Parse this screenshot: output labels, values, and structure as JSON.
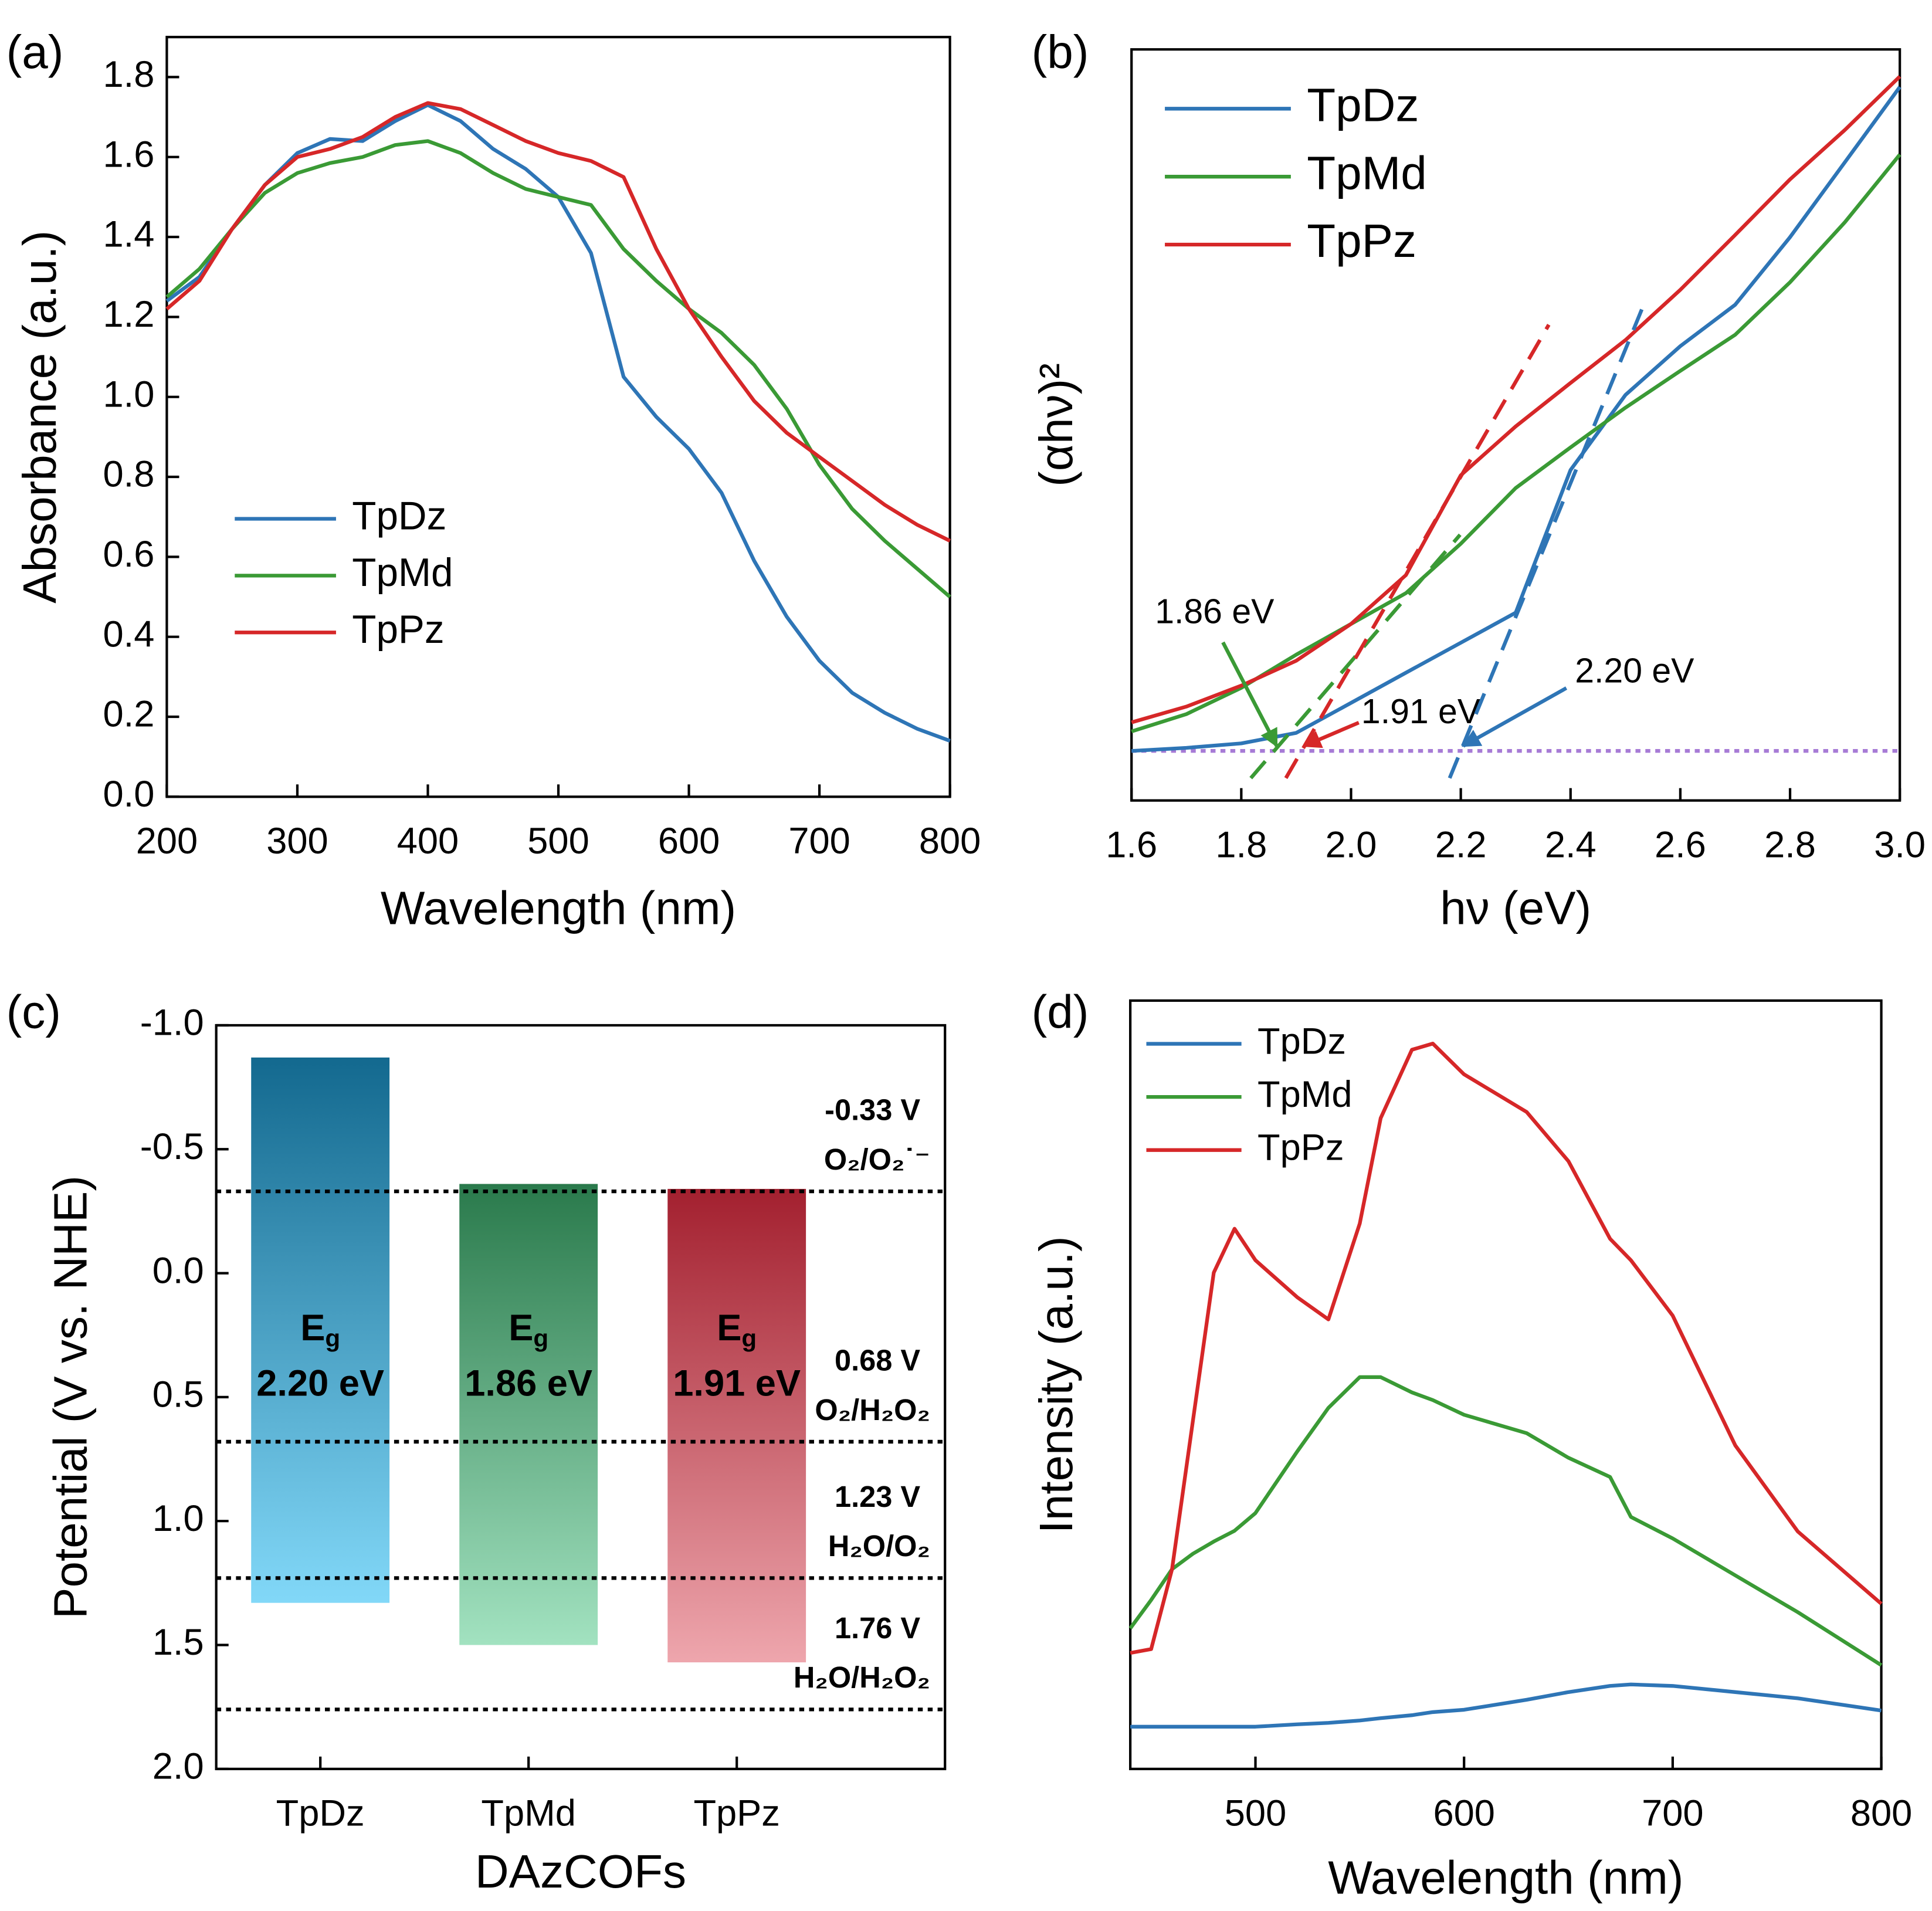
{
  "chart_data": [
    {
      "type": "line",
      "title": "(a)",
      "xlabel": "Wavelength (nm)",
      "ylabel": "Absorbance (a.u.)",
      "x": [
        200,
        225,
        250,
        275,
        300,
        325,
        350,
        375,
        400,
        425,
        450,
        475,
        500,
        525,
        550,
        575,
        600,
        625,
        650,
        675,
        700,
        725,
        750,
        775,
        800
      ],
      "series": [
        {
          "name": "TpDz",
          "color": "#2e75b6",
          "values": [
            1.24,
            1.3,
            1.42,
            1.53,
            1.61,
            1.645,
            1.64,
            1.69,
            1.73,
            1.69,
            1.62,
            1.57,
            1.5,
            1.36,
            1.05,
            0.95,
            0.87,
            0.76,
            0.59,
            0.45,
            0.34,
            0.26,
            0.21,
            0.17,
            0.14
          ]
        },
        {
          "name": "TpMd",
          "color": "#3a9a35",
          "values": [
            1.25,
            1.32,
            1.42,
            1.51,
            1.56,
            1.585,
            1.6,
            1.63,
            1.64,
            1.61,
            1.56,
            1.52,
            1.5,
            1.48,
            1.37,
            1.29,
            1.22,
            1.16,
            1.08,
            0.97,
            0.83,
            0.72,
            0.64,
            0.57,
            0.5
          ]
        },
        {
          "name": "TpPz",
          "color": "#d62728",
          "values": [
            1.22,
            1.29,
            1.42,
            1.53,
            1.6,
            1.62,
            1.65,
            1.7,
            1.735,
            1.72,
            1.68,
            1.64,
            1.61,
            1.59,
            1.55,
            1.37,
            1.22,
            1.1,
            0.99,
            0.91,
            0.85,
            0.79,
            0.73,
            0.68,
            0.64
          ]
        }
      ],
      "xlim": [
        200,
        800
      ],
      "xticks": [
        200,
        300,
        400,
        500,
        600,
        700,
        800
      ],
      "ylim": [
        0,
        1.9
      ],
      "yticks": [
        {
          "value": 0,
          "label": "0.0"
        },
        0.2,
        0.4,
        0.6,
        0.8,
        {
          "value": 1,
          "label": "1.0"
        },
        1.2,
        1.4,
        1.6,
        1.8
      ]
    },
    {
      "type": "line",
      "title": "(b)",
      "xlabel": "hν (eV)",
      "ylabel": "(αhν)²",
      "x": [
        1.6,
        1.7,
        1.8,
        1.9,
        2.0,
        2.1,
        2.2,
        2.3,
        2.4,
        2.5,
        2.6,
        2.7,
        2.8,
        2.9,
        3.0
      ],
      "series": [
        {
          "name": "TpDz",
          "color": "#2e75b6",
          "values": [
            0.066,
            0.07,
            0.076,
            0.09,
            0.13,
            0.17,
            0.21,
            0.25,
            0.44,
            0.54,
            0.605,
            0.66,
            0.75,
            0.85,
            0.95
          ]
        },
        {
          "name": "TpMd",
          "color": "#3a9a35",
          "values": [
            0.092,
            0.115,
            0.15,
            0.194,
            0.235,
            0.276,
            0.342,
            0.416,
            0.47,
            0.523,
            0.572,
            0.62,
            0.69,
            0.77,
            0.86
          ]
        },
        {
          "name": "TpPz",
          "color": "#d62728",
          "values": [
            0.104,
            0.125,
            0.153,
            0.186,
            0.235,
            0.3,
            0.433,
            0.498,
            0.556,
            0.613,
            0.68,
            0.753,
            0.827,
            0.893,
            0.964
          ]
        }
      ],
      "baseline": 0.066,
      "baseline_color": "#a77bd6",
      "annotations": [
        {
          "text": "1.86 eV",
          "value": 1.86,
          "color": "#3a9a35"
        },
        {
          "text": "1.91 eV",
          "value": 1.91,
          "color": "#d62728"
        },
        {
          "text": "2.20 eV",
          "value": 2.2,
          "color": "#2e75b6"
        }
      ],
      "xlim": [
        1.6,
        3.0
      ],
      "xticks": [
        1.6,
        1.8,
        {
          "value": 2,
          "label": "2.0"
        },
        2.2,
        2.4,
        2.6,
        2.8,
        {
          "value": 3,
          "label": "3.0"
        }
      ],
      "ylim": [
        0,
        1
      ]
    },
    {
      "type": "floating_bar",
      "title": "(c)",
      "xlabel": "DAzCOFs",
      "ylabel": "Potential (V vs. NHE)",
      "categories": [
        "TpDz",
        "TpMd",
        "TpPz"
      ],
      "cb": [
        -0.87,
        -0.36,
        -0.34
      ],
      "gaps": [
        2.2,
        1.86,
        1.91
      ],
      "gap_labels": [
        "2.20 eV",
        "1.86 eV",
        "1.91 eV"
      ],
      "gap_symbol": "E",
      "gap_symbol_sub": "g",
      "colors": [
        [
          "#13698f",
          "#82d8f8"
        ],
        [
          "#2a7a4c",
          "#a2e2c0"
        ],
        [
          "#a3202f",
          "#eea6ad"
        ]
      ],
      "levels": [
        {
          "value": -0.33,
          "label": "-0.33 V",
          "couple": "O₂/O₂˙⁻"
        },
        {
          "value": 0.68,
          "label": "0.68 V",
          "couple": "O₂/H₂O₂"
        },
        {
          "value": 1.23,
          "label": "1.23 V",
          "couple": "H₂O/O₂"
        },
        {
          "value": 1.76,
          "label": "1.76 V",
          "couple": "H₂O/H₂O₂"
        }
      ],
      "inverted": true,
      "ylim": [
        -1,
        2
      ],
      "yticks": [
        {
          "value": -1,
          "label": "-1.0"
        },
        -0.5,
        {
          "value": 0,
          "label": "0.0"
        },
        0.5,
        {
          "value": 1,
          "label": "1.0"
        },
        1.5,
        {
          "value": 2,
          "label": "2.0"
        }
      ]
    },
    {
      "type": "line",
      "title": "(d)",
      "xlabel": "Wavelength (nm)",
      "ylabel": "Intensity (a.u.)",
      "x": [
        440,
        450,
        460,
        470,
        480,
        490,
        500,
        520,
        535,
        550,
        560,
        575,
        585,
        600,
        630,
        650,
        670,
        680,
        700,
        730,
        760,
        800
      ],
      "series": [
        {
          "name": "TpDz",
          "color": "#2e75b6",
          "values": [
            0.055,
            0.055,
            0.055,
            0.055,
            0.055,
            0.055,
            0.055,
            0.058,
            0.06,
            0.063,
            0.066,
            0.07,
            0.074,
            0.077,
            0.09,
            0.1,
            0.108,
            0.11,
            0.108,
            0.1,
            0.092,
            0.076
          ]
        },
        {
          "name": "TpMd",
          "color": "#3a9a35",
          "values": [
            0.183,
            0.22,
            0.26,
            0.28,
            0.296,
            0.31,
            0.333,
            0.413,
            0.47,
            0.51,
            0.51,
            0.49,
            0.48,
            0.461,
            0.437,
            0.405,
            0.38,
            0.328,
            0.3,
            0.252,
            0.204,
            0.135
          ]
        },
        {
          "name": "TpPz",
          "color": "#d62728",
          "values": [
            0.151,
            0.156,
            0.26,
            0.453,
            0.646,
            0.703,
            0.662,
            0.614,
            0.585,
            0.71,
            0.847,
            0.936,
            0.944,
            0.904,
            0.855,
            0.791,
            0.69,
            0.662,
            0.59,
            0.421,
            0.309,
            0.215
          ]
        }
      ],
      "xlim": [
        440,
        800
      ],
      "xticks": [
        500,
        600,
        700,
        800
      ],
      "ylim": [
        0,
        1
      ]
    }
  ]
}
